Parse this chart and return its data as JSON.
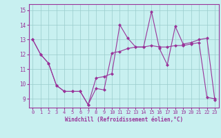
{
  "line1_x": [
    0,
    1,
    2,
    3,
    4,
    5,
    6,
    7,
    8,
    9,
    10,
    11,
    12,
    13,
    14,
    15,
    16,
    17,
    18,
    19,
    20,
    21,
    22,
    23
  ],
  "line1_y": [
    13,
    12,
    11.4,
    9.9,
    9.5,
    9.5,
    9.5,
    8.6,
    10.4,
    10.5,
    10.7,
    14.0,
    13.1,
    12.5,
    12.5,
    14.9,
    12.4,
    11.3,
    13.9,
    12.7,
    12.8,
    13.0,
    13.1,
    8.9
  ],
  "line2_x": [
    0,
    1,
    2,
    3,
    4,
    5,
    6,
    7,
    8,
    9,
    10,
    11,
    12,
    13,
    14,
    15,
    16,
    17,
    18,
    19,
    20,
    21,
    22,
    23
  ],
  "line2_y": [
    13,
    12,
    11.4,
    9.9,
    9.5,
    9.5,
    9.5,
    8.6,
    9.7,
    9.6,
    12.1,
    12.2,
    12.4,
    12.5,
    12.5,
    12.6,
    12.5,
    12.5,
    12.6,
    12.6,
    12.7,
    12.8,
    9.1,
    9.0
  ],
  "line_color": "#993399",
  "bg_color": "#c8f0f0",
  "grid_color": "#99cccc",
  "xlabel": "Windchill (Refroidissement éolien,°C)",
  "yticks": [
    9,
    10,
    11,
    12,
    13,
    14,
    15
  ],
  "xticks": [
    0,
    1,
    2,
    3,
    4,
    5,
    6,
    7,
    8,
    9,
    10,
    11,
    12,
    13,
    14,
    15,
    16,
    17,
    18,
    19,
    20,
    21,
    22,
    23
  ],
  "ylim": [
    8.4,
    15.4
  ],
  "xlim": [
    -0.5,
    23.5
  ]
}
